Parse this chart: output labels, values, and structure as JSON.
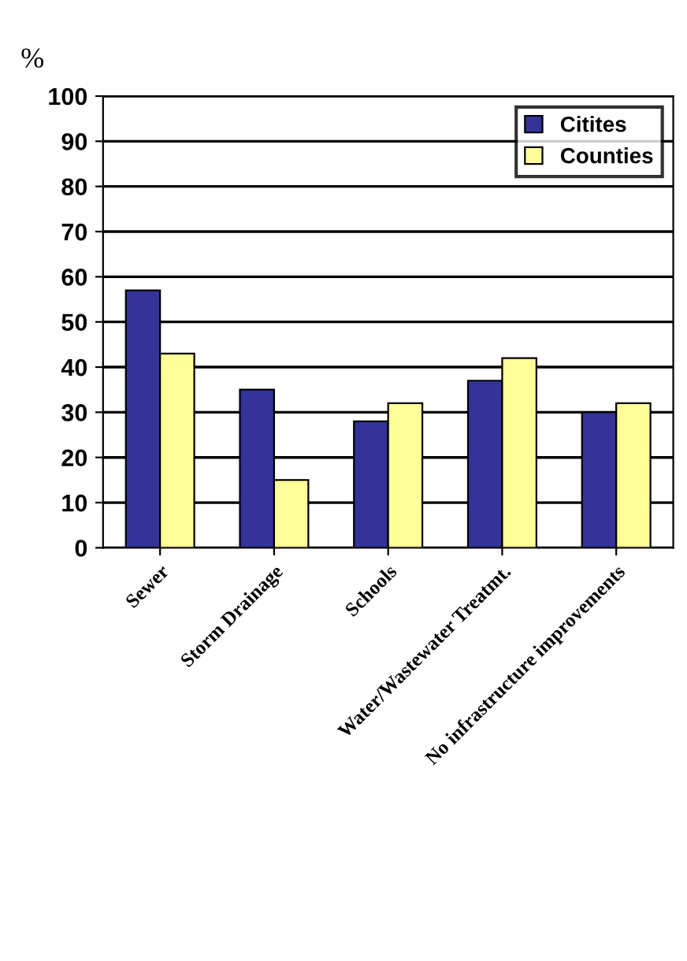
{
  "chart_data": {
    "type": "bar",
    "ylabel": "%",
    "categories": [
      "Sewer",
      "Storm Drainage",
      "Schools",
      "Water/Wastewater Treatmt.",
      "No infrastructure improvements"
    ],
    "series": [
      {
        "name": "Citites",
        "color": "#333399",
        "values": [
          57,
          35,
          28,
          37,
          30
        ]
      },
      {
        "name": "Counties",
        "color": "#ffff99",
        "values": [
          43,
          15,
          32,
          42,
          32
        ]
      }
    ],
    "ylim": [
      0,
      100
    ],
    "yticks": [
      0,
      10,
      20,
      30,
      40,
      50,
      60,
      70,
      80,
      90,
      100
    ],
    "grid": "y",
    "legend": "top right"
  }
}
